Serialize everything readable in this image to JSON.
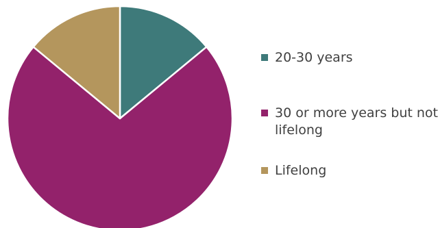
{
  "chart_data": {
    "type": "pie",
    "start_angle_deg": 0,
    "direction": "clockwise",
    "legend_position": "right",
    "slices": [
      {
        "label": "20-30 years",
        "value": 14,
        "color": "#3e7a7a"
      },
      {
        "label": "30 or more years but not lifelong",
        "value": 72,
        "color": "#93226b"
      },
      {
        "label": "Lifelong",
        "value": 14,
        "color": "#b4965d"
      }
    ]
  }
}
